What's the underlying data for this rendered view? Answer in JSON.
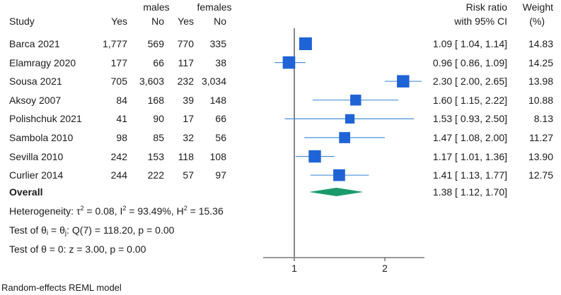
{
  "chart_data": {
    "type": "forest",
    "title": "",
    "headers": {
      "study": "Study",
      "group1": "males",
      "group2": "females",
      "yes": "Yes",
      "no": "No",
      "effect_line1": "Risk ratio",
      "effect_line2": "with 95% CI",
      "weight_line1": "Weight",
      "weight_line2": "(%)"
    },
    "studies": [
      {
        "study": "Barca 2021",
        "m_yes": "1,777",
        "m_no": "569",
        "f_yes": "770",
        "f_no": "335",
        "rr": 1.09,
        "lo": 1.04,
        "hi": 1.14,
        "ci_text": "1.09 [ 1.04, 1.14]",
        "weight": 14.83,
        "weight_text": "14.83"
      },
      {
        "study": "Elamragy 2020",
        "m_yes": "177",
        "m_no": "66",
        "f_yes": "117",
        "f_no": "38",
        "rr": 0.96,
        "lo": 0.86,
        "hi": 1.09,
        "ci_text": "0.96 [ 0.86, 1.09]",
        "weight": 14.25,
        "weight_text": "14.25"
      },
      {
        "study": "Sousa 2021",
        "m_yes": "705",
        "m_no": "3,603",
        "f_yes": "232",
        "f_no": "3,034",
        "rr": 2.3,
        "lo": 2.0,
        "hi": 2.65,
        "ci_text": "2.30 [ 2.00, 2.65]",
        "weight": 13.98,
        "weight_text": "13.98"
      },
      {
        "study": "Aksoy 2007",
        "m_yes": "84",
        "m_no": "168",
        "f_yes": "39",
        "f_no": "148",
        "rr": 1.6,
        "lo": 1.15,
        "hi": 2.22,
        "ci_text": "1.60 [ 1.15, 2.22]",
        "weight": 10.88,
        "weight_text": "10.88"
      },
      {
        "study": "Polishchuk 2021",
        "m_yes": "41",
        "m_no": "90",
        "f_yes": "17",
        "f_no": "66",
        "rr": 1.53,
        "lo": 0.93,
        "hi": 2.5,
        "ci_text": "1.53 [ 0.93, 2.50]",
        "weight": 8.13,
        "weight_text": "8.13"
      },
      {
        "study": "Sambola 2010",
        "m_yes": "98",
        "m_no": "85",
        "f_yes": "32",
        "f_no": "56",
        "rr": 1.47,
        "lo": 1.08,
        "hi": 2.0,
        "ci_text": "1.47 [ 1.08, 2.00]",
        "weight": 11.27,
        "weight_text": "11.27"
      },
      {
        "study": "Sevilla 2010",
        "m_yes": "242",
        "m_no": "153",
        "f_yes": "118",
        "f_no": "108",
        "rr": 1.17,
        "lo": 1.01,
        "hi": 1.36,
        "ci_text": "1.17 [ 1.01, 1.36]",
        "weight": 13.9,
        "weight_text": "13.90"
      },
      {
        "study": "Curlier 2014",
        "m_yes": "244",
        "m_no": "222",
        "f_yes": "57",
        "f_no": "97",
        "rr": 1.41,
        "lo": 1.13,
        "hi": 1.77,
        "ci_text": "1.41 [ 1.13, 1.77]",
        "weight": 12.75,
        "weight_text": "12.75"
      }
    ],
    "overall": {
      "label": "Overall",
      "rr": 1.38,
      "lo": 1.12,
      "hi": 1.7,
      "ci_text": "1.38 [ 1.12, 1.70]"
    },
    "stats": {
      "heterogeneity_label": "Heterogeneity: τ",
      "tau2": "= 0.08, I",
      "i2": "= 93.49%, H",
      "h2": "= 15.36",
      "test1_prefix": "Test of θ",
      "test1_mid": " = θ",
      "test1_suffix": ": Q(7) = 118.20, p = 0.00",
      "test2": "Test of θ = 0: z = 3.00, p = 0.00"
    },
    "xaxis": {
      "scale": "log",
      "ticks": [
        1,
        2
      ],
      "tick_labels": [
        "1",
        "2"
      ],
      "range": [
        0.83,
        2.78
      ]
    },
    "null_line": 1,
    "footnote": "Random-effects REML model",
    "colors": {
      "marker": "#1f63d6",
      "ci_line": "#4a8fd8",
      "diamond": "#1a9a6a",
      "axis": "#333333"
    }
  }
}
